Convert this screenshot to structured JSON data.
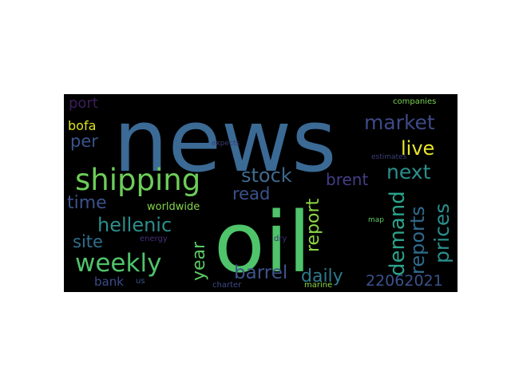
{
  "wordcloud": {
    "background": "#000000",
    "words": [
      {
        "text": "news",
        "color": "#3b6a95"
      },
      {
        "text": "oil",
        "color": "#4fc46a"
      },
      {
        "text": "shipping",
        "color": "#6dcd59"
      },
      {
        "text": "weekly",
        "color": "#4fc46a"
      },
      {
        "text": "hellenic",
        "color": "#2d8d8b"
      },
      {
        "text": "market",
        "color": "#3e4a89"
      },
      {
        "text": "stock",
        "color": "#3e6a8f"
      },
      {
        "text": "next",
        "color": "#2b8e8d"
      },
      {
        "text": "live",
        "color": "#e8e42b"
      },
      {
        "text": "demand",
        "color": "#2ba38b"
      },
      {
        "text": "reports",
        "color": "#2f6b8e"
      },
      {
        "text": "prices",
        "color": "#2b8e8d"
      },
      {
        "text": "report",
        "color": "#8dd645"
      },
      {
        "text": "brent",
        "color": "#433e85"
      },
      {
        "text": "read",
        "color": "#3b528b"
      },
      {
        "text": "year",
        "color": "#5cc863"
      },
      {
        "text": "barrel",
        "color": "#3e5389"
      },
      {
        "text": "daily",
        "color": "#2e7a8e"
      },
      {
        "text": "22062021",
        "color": "#3b528b"
      },
      {
        "text": "time",
        "color": "#3b528b"
      },
      {
        "text": "per",
        "color": "#3a548c"
      },
      {
        "text": "bofa",
        "color": "#dde318"
      },
      {
        "text": "port",
        "color": "#3c1f5c"
      },
      {
        "text": "site",
        "color": "#2f6f8e"
      },
      {
        "text": "bank",
        "color": "#3b4c8a"
      },
      {
        "text": "worldwide",
        "color": "#84d44b"
      },
      {
        "text": "energy",
        "color": "#472d7b"
      },
      {
        "text": "us",
        "color": "#3b528b"
      },
      {
        "text": "charter",
        "color": "#3e4a89"
      },
      {
        "text": "dry",
        "color": "#3e2f72"
      },
      {
        "text": "marine",
        "color": "#8fd744"
      },
      {
        "text": "expects",
        "color": "#3a3a6e"
      },
      {
        "text": "estimates",
        "color": "#3c3f78"
      },
      {
        "text": "map",
        "color": "#5ec962"
      },
      {
        "text": "companies",
        "color": "#7ad151"
      }
    ]
  }
}
